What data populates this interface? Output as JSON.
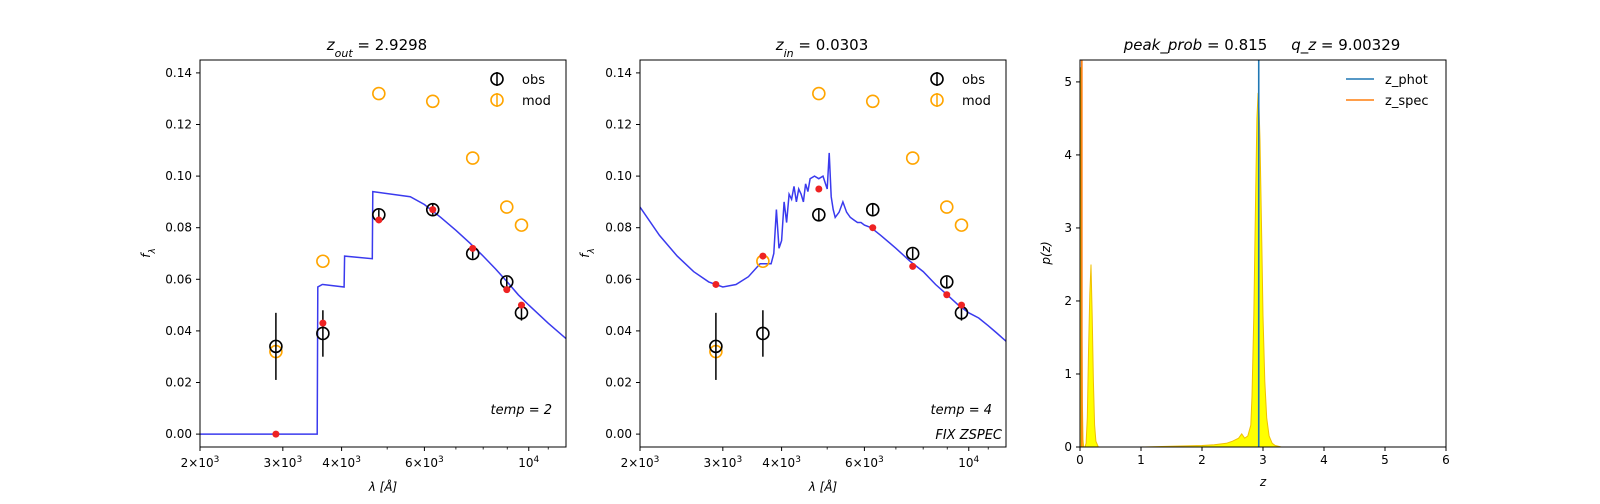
{
  "chart_data": [
    {
      "type": "scatter",
      "title": "z_out = 2.9298",
      "title_main": "z",
      "title_sub": "out",
      "title_rest": " = 2.9298",
      "xlabel": "λ [Å]",
      "ylabel": "f_λ",
      "ylabel_main": "f",
      "ylabel_sub": "λ",
      "xscale": "log",
      "xlim": [
        2000,
        12000
      ],
      "ylim": [
        -0.005,
        0.145
      ],
      "xticks": [
        {
          "v": 2000,
          "m": "2",
          "e": "3"
        },
        {
          "v": 3000,
          "m": "3",
          "e": "3"
        },
        {
          "v": 4000,
          "m": "4",
          "e": "3"
        },
        {
          "v": 6000,
          "m": "6",
          "e": "3"
        },
        {
          "v": 10000,
          "m": "",
          "e": "4"
        }
      ],
      "yticks": [
        "0.00",
        "0.02",
        "0.04",
        "0.06",
        "0.08",
        "0.10",
        "0.12",
        "0.14"
      ],
      "legend": [
        "obs",
        "mod"
      ],
      "legend_position": "top-right",
      "annotations": [
        "temp = 2"
      ],
      "series": [
        {
          "name": "obs",
          "x": [
            2900,
            3650,
            4800,
            6250,
            7600,
            8980,
            9650
          ],
          "y": [
            0.034,
            0.039,
            0.085,
            0.087,
            0.07,
            0.059,
            0.047
          ],
          "yerr": [
            0.013,
            0.009,
            0.002,
            0.002,
            0.002,
            0.002,
            0.003
          ]
        },
        {
          "name": "mod",
          "x": [
            2900,
            3650,
            4800,
            6250,
            7600,
            8980,
            9650
          ],
          "y": [
            0.032,
            0.067,
            0.132,
            0.129,
            0.107,
            0.088,
            0.081
          ]
        },
        {
          "type": "points",
          "x": [
            2900,
            3650,
            4800,
            6250,
            7600,
            8980,
            9650
          ],
          "y": [
            0.0,
            0.043,
            0.083,
            0.087,
            0.072,
            0.056,
            0.05
          ]
        },
        {
          "type": "line",
          "x": [
            2000,
            3550,
            3560,
            3640,
            3650,
            4050,
            4060,
            4650,
            4660,
            5600,
            6000,
            6500,
            7000,
            7500,
            8000,
            8500,
            9000,
            9500,
            10000,
            11000,
            12000
          ],
          "y": [
            0.0,
            0.0,
            0.057,
            0.058,
            0.058,
            0.057,
            0.069,
            0.068,
            0.094,
            0.092,
            0.089,
            0.084,
            0.079,
            0.074,
            0.069,
            0.064,
            0.059,
            0.054,
            0.05,
            0.043,
            0.037
          ]
        }
      ]
    },
    {
      "type": "scatter",
      "title": "z_in = 0.0303",
      "title_main": "z",
      "title_sub": "in",
      "title_rest": " = 0.0303",
      "xlabel": "λ [Å]",
      "ylabel": "f_λ",
      "ylabel_main": "f",
      "ylabel_sub": "λ",
      "xscale": "log",
      "xlim": [
        2000,
        12000
      ],
      "ylim": [
        -0.005,
        0.145
      ],
      "xticks": [
        {
          "v": 2000,
          "m": "2",
          "e": "3"
        },
        {
          "v": 3000,
          "m": "3",
          "e": "3"
        },
        {
          "v": 4000,
          "m": "4",
          "e": "3"
        },
        {
          "v": 6000,
          "m": "6",
          "e": "3"
        },
        {
          "v": 10000,
          "m": "",
          "e": "4"
        }
      ],
      "yticks": [
        "0.00",
        "0.02",
        "0.04",
        "0.06",
        "0.08",
        "0.10",
        "0.12",
        "0.14"
      ],
      "legend": [
        "obs",
        "mod"
      ],
      "legend_position": "top-right",
      "annotations": [
        "temp = 4",
        "FIX ZSPEC"
      ],
      "series": [
        {
          "name": "obs",
          "x": [
            2900,
            3650,
            4800,
            6250,
            7600,
            8980,
            9650
          ],
          "y": [
            0.034,
            0.039,
            0.085,
            0.087,
            0.07,
            0.059,
            0.047
          ],
          "yerr": [
            0.013,
            0.009,
            0.002,
            0.002,
            0.002,
            0.002,
            0.003
          ]
        },
        {
          "name": "mod",
          "x": [
            2900,
            3650,
            4800,
            6250,
            7600,
            8980,
            9650
          ],
          "y": [
            0.032,
            0.067,
            0.132,
            0.129,
            0.107,
            0.088,
            0.081
          ]
        },
        {
          "type": "points",
          "x": [
            2900,
            3650,
            4800,
            6250,
            7600,
            8980,
            9650
          ],
          "y": [
            0.058,
            0.069,
            0.095,
            0.08,
            0.065,
            0.054,
            0.05
          ]
        },
        {
          "type": "line",
          "x": [
            2000,
            2200,
            2400,
            2600,
            2800,
            3000,
            3200,
            3400,
            3600,
            3800,
            3850,
            3900,
            3950,
            4000,
            4050,
            4100,
            4150,
            4200,
            4250,
            4300,
            4350,
            4400,
            4450,
            4500,
            4550,
            4600,
            4700,
            4800,
            4900,
            5000,
            5050,
            5100,
            5150,
            5200,
            5300,
            5400,
            5500,
            5600,
            5700,
            5800,
            5900,
            6000,
            6200,
            6500,
            7000,
            7500,
            8000,
            8500,
            9000,
            9500,
            10000,
            10500,
            11000,
            11500,
            12000
          ],
          "y": [
            0.088,
            0.077,
            0.069,
            0.063,
            0.059,
            0.057,
            0.058,
            0.061,
            0.066,
            0.066,
            0.07,
            0.087,
            0.072,
            0.075,
            0.09,
            0.082,
            0.093,
            0.091,
            0.096,
            0.09,
            0.095,
            0.093,
            0.09,
            0.097,
            0.094,
            0.099,
            0.1,
            0.099,
            0.1,
            0.095,
            0.109,
            0.092,
            0.087,
            0.084,
            0.086,
            0.09,
            0.086,
            0.084,
            0.083,
            0.082,
            0.082,
            0.081,
            0.08,
            0.077,
            0.072,
            0.067,
            0.063,
            0.058,
            0.054,
            0.05,
            0.047,
            0.045,
            0.042,
            0.039,
            0.036
          ]
        }
      ]
    },
    {
      "type": "area",
      "title": "peak_prob = 0.815      q_z = 9.00329",
      "title_part1": "peak_prob",
      "title_part1_rest": " = 0.815",
      "title_part2": "q_z",
      "title_part2_rest": " = 9.00329",
      "xlabel": "z",
      "ylabel": "p(z)",
      "xlim": [
        0,
        6
      ],
      "ylim": [
        0,
        5.3
      ],
      "xticks": [
        "0",
        "1",
        "2",
        "3",
        "4",
        "5",
        "6"
      ],
      "yticks": [
        "0",
        "1",
        "2",
        "3",
        "4",
        "5"
      ],
      "legend": [
        "z_phot",
        "z_spec"
      ],
      "legend_position": "top-right",
      "colors": {
        "z_phot": "#1f77b4",
        "z_spec": "#ff7f0e",
        "fill": "#ffff00"
      },
      "z_phot": 2.93,
      "z_spec": 0.0303,
      "series": [
        {
          "name": "z_spec",
          "x": [
            0.0,
            0.005,
            0.01,
            0.02,
            0.03,
            0.04,
            0.05,
            0.06,
            0.08,
            0.1,
            0.12,
            0.14,
            0.16,
            0.18,
            0.2,
            0.22,
            0.24,
            0.26,
            0.3,
            0.4,
            1.0,
            1.5,
            2.0,
            2.2,
            2.4,
            2.5,
            2.6,
            2.65,
            2.7,
            2.75,
            2.8,
            2.82,
            2.85,
            2.88,
            2.9,
            2.92,
            2.93,
            2.95,
            2.98,
            3.0,
            3.03,
            3.06,
            3.1,
            3.15,
            3.2,
            3.3,
            3.5,
            4.0,
            5.0
          ],
          "y": [
            0.0,
            2.5,
            5.2,
            4.5,
            2.0,
            0.6,
            0.1,
            0.0,
            0.0,
            0.05,
            0.4,
            1.3,
            2.1,
            2.5,
            1.8,
            0.9,
            0.3,
            0.08,
            0.0,
            0.0,
            0.0,
            0.01,
            0.02,
            0.03,
            0.05,
            0.08,
            0.12,
            0.18,
            0.12,
            0.15,
            0.3,
            0.7,
            1.8,
            3.5,
            4.5,
            4.85,
            4.8,
            4.2,
            2.8,
            1.8,
            0.9,
            0.4,
            0.15,
            0.05,
            0.02,
            0.0,
            0.0,
            0.0,
            0.0
          ]
        }
      ]
    }
  ]
}
